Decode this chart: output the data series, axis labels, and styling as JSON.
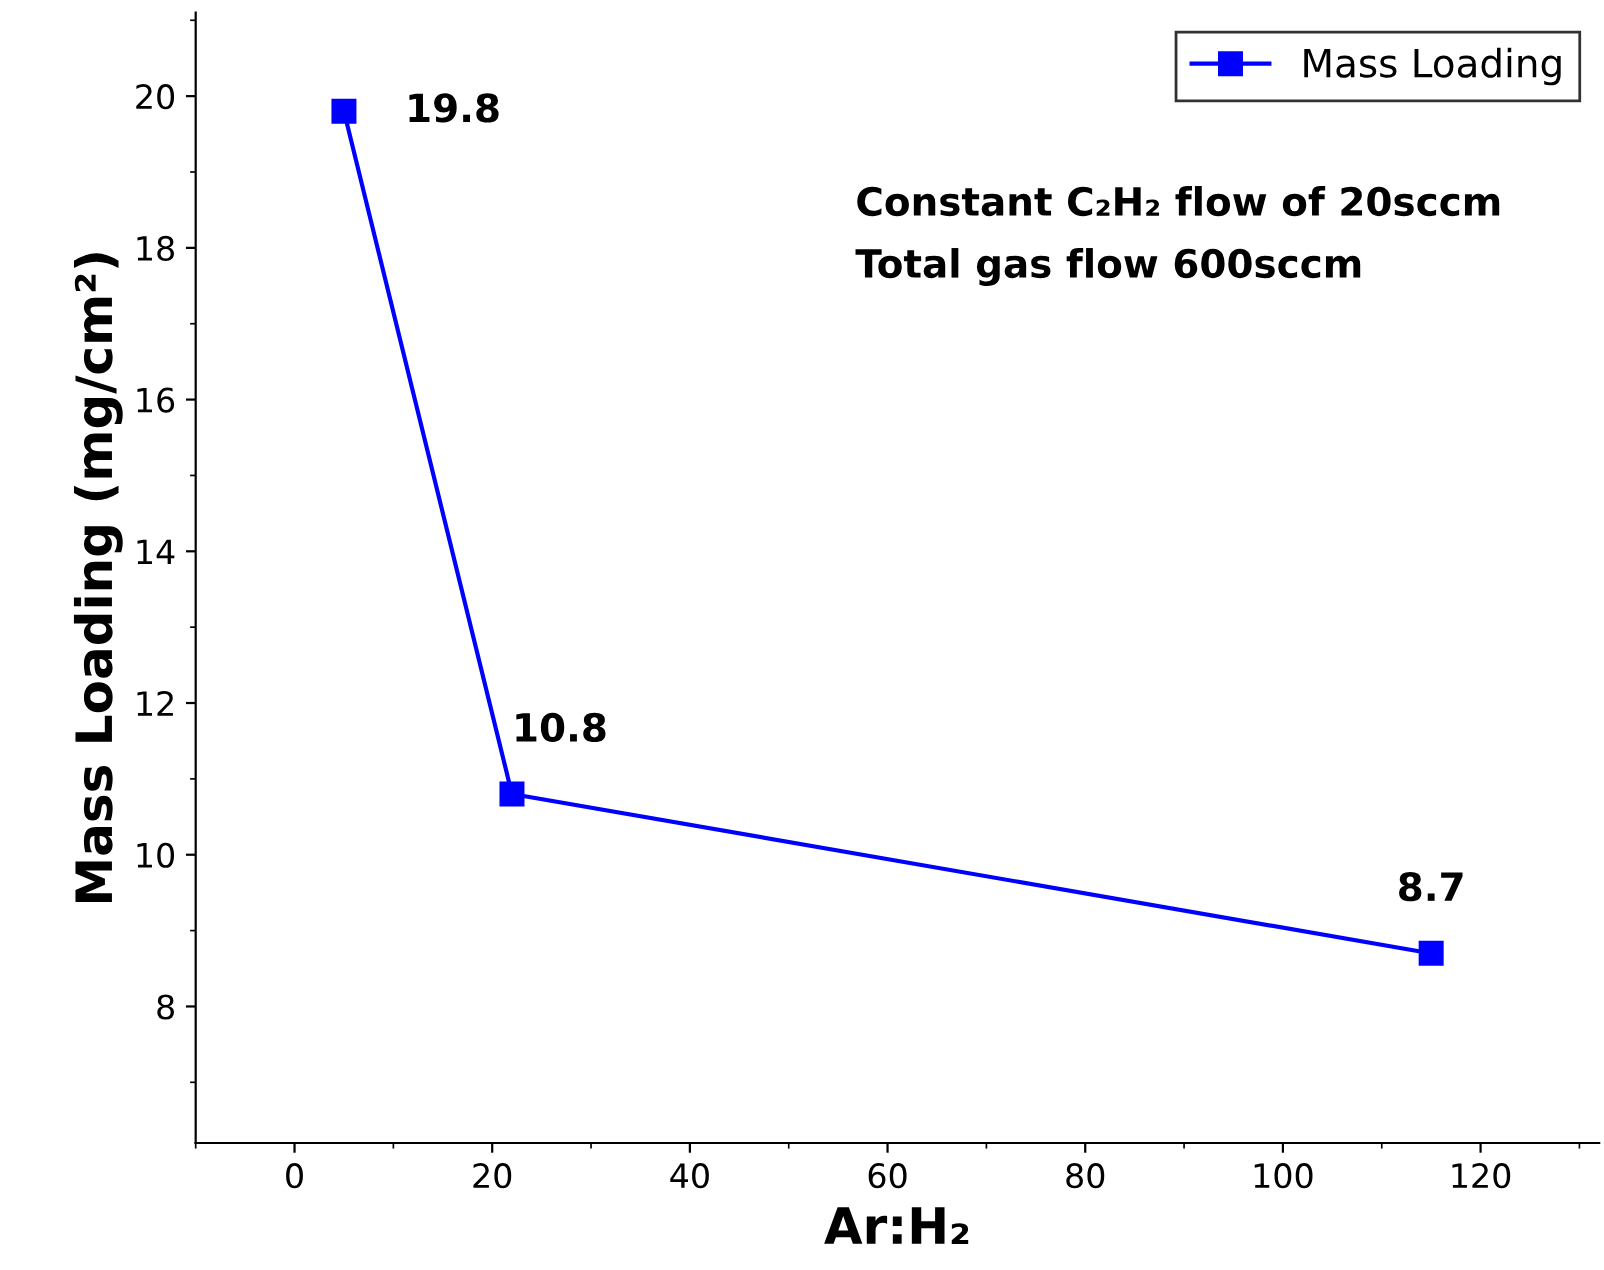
{
  "chart_data": {
    "type": "line",
    "xlabel": "Ar:H₂",
    "ylabel": "Mass Loading (mg/cm²)",
    "x": [
      5,
      22,
      115
    ],
    "series": [
      {
        "name": "Mass Loading",
        "color": "#0000ff",
        "values": [
          19.8,
          10.8,
          8.7
        ]
      }
    ],
    "xlim": [
      -10,
      132
    ],
    "xticks": [
      0,
      20,
      40,
      60,
      80,
      100,
      120
    ],
    "ylim": [
      6.2,
      21.1
    ],
    "yticks": [
      8,
      10,
      12,
      14,
      16,
      18,
      20
    ],
    "marker": "square",
    "line_style": "solid",
    "legend": "top right",
    "grid": false,
    "data_labels": true,
    "annotations": [
      "Constant C₂H₂ flow of 20sccm",
      "Total gas flow 600sccm"
    ]
  }
}
